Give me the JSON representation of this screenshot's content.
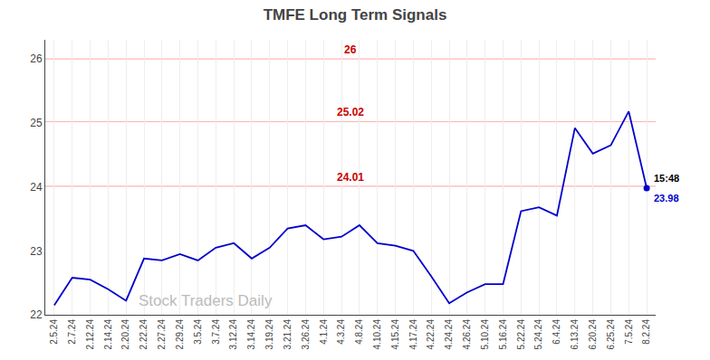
{
  "chart_data": {
    "type": "line",
    "title": "TMFE Long Term Signals",
    "categories": [
      "2.5.24",
      "2.7.24",
      "2.12.24",
      "2.14.24",
      "2.20.24",
      "2.22.24",
      "2.27.24",
      "2.29.24",
      "3.5.24",
      "3.7.24",
      "3.12.24",
      "3.14.24",
      "3.19.24",
      "3.21.24",
      "3.26.24",
      "4.1.24",
      "4.3.24",
      "4.8.24",
      "4.10.24",
      "4.15.24",
      "4.17.24",
      "4.22.24",
      "4.24.24",
      "4.26.24",
      "5.10.24",
      "5.16.24",
      "5.22.24",
      "5.24.24",
      "6.4.24",
      "6.13.24",
      "6.20.24",
      "6.25.24",
      "7.5.24",
      "8.2.24"
    ],
    "values": [
      22.15,
      22.58,
      22.55,
      22.4,
      22.22,
      22.88,
      22.85,
      22.95,
      22.85,
      23.05,
      23.12,
      22.88,
      23.05,
      23.35,
      23.4,
      23.18,
      23.22,
      23.4,
      23.12,
      23.08,
      23.0,
      22.6,
      22.18,
      22.35,
      22.48,
      22.48,
      23.62,
      23.68,
      23.55,
      24.92,
      24.52,
      24.65,
      25.18,
      23.98
    ],
    "color": "#0000cc",
    "hlines": [
      {
        "y": 26.0,
        "label": "26",
        "color": "#cc0000",
        "line_color": "#ffb3b3"
      },
      {
        "y": 25.02,
        "label": "25.02",
        "color": "#cc0000",
        "line_color": "#ffb3b3"
      },
      {
        "y": 24.01,
        "label": "24.01",
        "color": "#cc0000",
        "line_color": "#ffb3b3"
      }
    ],
    "annotations": [
      {
        "text": "15:48",
        "color": "#000000"
      },
      {
        "text": "23.98",
        "color": "#0000cc"
      }
    ],
    "watermark": {
      "text": "Stock Traders Daily",
      "color": "#bbbbbb"
    },
    "ylim": [
      22.0,
      26.3
    ],
    "yticks": [
      22,
      23,
      24,
      25,
      26
    ],
    "grid": "x"
  }
}
